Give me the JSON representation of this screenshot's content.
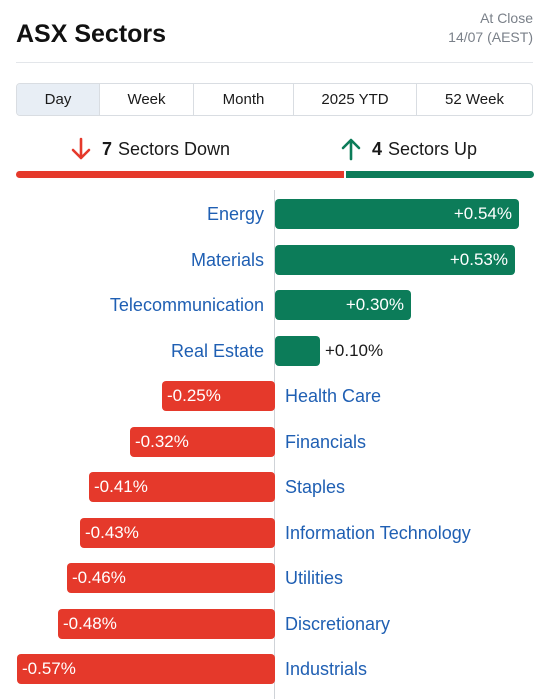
{
  "header": {
    "title": "ASX Sectors",
    "status_line1": "At Close",
    "status_line2": "14/07 (AEST)"
  },
  "tabs": [
    {
      "label": "Day",
      "active": true
    },
    {
      "label": "Week",
      "active": false
    },
    {
      "label": "Month",
      "active": false
    },
    {
      "label": "2025 YTD",
      "active": false
    },
    {
      "label": "52 Week",
      "active": false
    }
  ],
  "summary": {
    "down_count": "7",
    "down_label": "Sectors Down",
    "up_count": "4",
    "up_label": "Sectors Up",
    "down_color": "#e5392b",
    "up_color": "#0c7c59",
    "down_icon": "arrow-down-icon",
    "up_icon": "arrow-up-icon"
  },
  "chart_data": {
    "type": "bar",
    "categories": [
      "Energy",
      "Materials",
      "Telecommunication",
      "Real Estate",
      "Health Care",
      "Financials",
      "Staples",
      "Information Technology",
      "Utilities",
      "Discretionary",
      "Industrials"
    ],
    "values": [
      0.54,
      0.53,
      0.3,
      0.1,
      -0.25,
      -0.32,
      -0.41,
      -0.43,
      -0.46,
      -0.48,
      -0.57
    ],
    "labels": [
      "+0.54%",
      "+0.53%",
      "+0.30%",
      "+0.10%",
      "-0.25%",
      "-0.32%",
      "-0.41%",
      "-0.43%",
      "-0.46%",
      "-0.48%",
      "-0.57%"
    ],
    "positive_color": "#0c7c59",
    "negative_color": "#e5392b"
  }
}
